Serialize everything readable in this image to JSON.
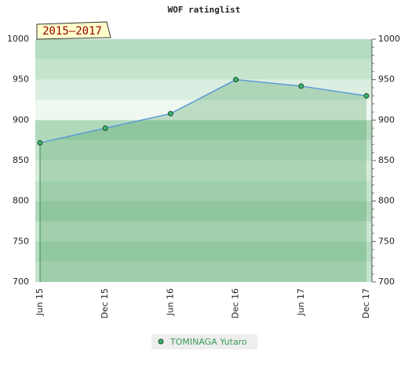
{
  "chart_data": {
    "type": "line",
    "title": "WOF ratinglist",
    "annotation": "2015–2017",
    "categories": [
      "Jun 15",
      "Dec 15",
      "Jun 16",
      "Dec 16",
      "Jun 17",
      "Dec 17"
    ],
    "series": [
      {
        "name": "TOMINAGA Yutaro",
        "color": "#5b9bd5",
        "marker_color": "#3cb371",
        "values": [
          872,
          890,
          908,
          950,
          942,
          930
        ]
      }
    ],
    "ylim": [
      700,
      1000
    ],
    "yticks": [
      700,
      750,
      800,
      850,
      900,
      950,
      1000
    ],
    "grid": true
  }
}
